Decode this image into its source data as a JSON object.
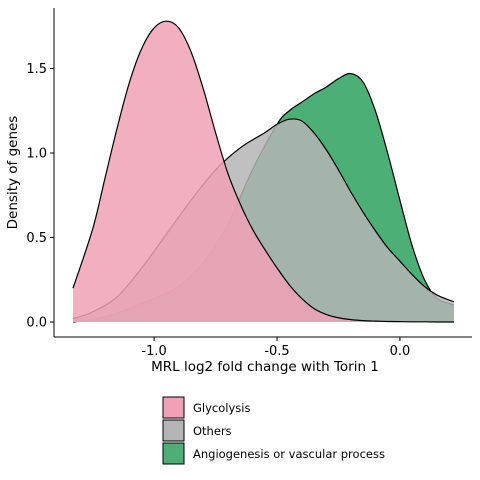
{
  "chart_data": {
    "type": "area",
    "xlabel": "MRL log2 fold change with Torin 1",
    "ylabel": "Density of genes",
    "xlim": [
      -1.33,
      0.22
    ],
    "ylim": [
      0,
      1.85
    ],
    "x_ticks": [
      -1.0,
      -0.5,
      0.0
    ],
    "x_tick_labels": [
      "-1.0",
      "-0.5",
      "0.0"
    ],
    "y_ticks": [
      0.0,
      0.5,
      1.0,
      1.5
    ],
    "y_tick_labels": [
      "0.0",
      "0.5",
      "1.0",
      "1.5"
    ],
    "grid": false,
    "legend_position": "bottom",
    "series": [
      {
        "name": "Angiogenesis or vascular process",
        "color": "#4caf76",
        "opacity": 1.0,
        "x": [
          -1.33,
          -1.2,
          -1.1,
          -1.0,
          -0.9,
          -0.8,
          -0.7,
          -0.6,
          -0.5,
          -0.45,
          -0.4,
          -0.35,
          -0.3,
          -0.25,
          -0.2,
          -0.15,
          -0.1,
          -0.05,
          0.0,
          0.05,
          0.1,
          0.15,
          0.2,
          0.22
        ],
        "y": [
          0.0,
          0.03,
          0.08,
          0.14,
          0.21,
          0.35,
          0.58,
          0.9,
          1.17,
          1.25,
          1.3,
          1.35,
          1.39,
          1.44,
          1.47,
          1.42,
          1.25,
          1.0,
          0.72,
          0.45,
          0.25,
          0.14,
          0.11,
          0.1
        ]
      },
      {
        "name": "Others",
        "color": "#b5b5b5",
        "opacity": 0.85,
        "x": [
          -1.33,
          -1.25,
          -1.15,
          -1.05,
          -0.95,
          -0.85,
          -0.75,
          -0.65,
          -0.55,
          -0.5,
          -0.45,
          -0.4,
          -0.35,
          -0.3,
          -0.25,
          -0.2,
          -0.15,
          -0.1,
          -0.05,
          0.0,
          0.05,
          0.1,
          0.15,
          0.2,
          0.22
        ],
        "y": [
          0.02,
          0.06,
          0.15,
          0.32,
          0.52,
          0.72,
          0.9,
          1.03,
          1.12,
          1.17,
          1.2,
          1.19,
          1.12,
          1.02,
          0.9,
          0.77,
          0.65,
          0.54,
          0.44,
          0.36,
          0.28,
          0.21,
          0.16,
          0.13,
          0.12
        ]
      },
      {
        "name": "Glycolysis",
        "color": "#f0a1b5",
        "opacity": 0.85,
        "x": [
          -1.33,
          -1.25,
          -1.2,
          -1.15,
          -1.1,
          -1.05,
          -1.0,
          -0.95,
          -0.9,
          -0.85,
          -0.8,
          -0.75,
          -0.7,
          -0.65,
          -0.6,
          -0.55,
          -0.5,
          -0.45,
          -0.4,
          -0.35,
          -0.3,
          -0.25,
          -0.2,
          -0.15,
          -0.1,
          -0.05,
          0.0,
          0.05,
          0.1,
          0.15,
          0.2,
          0.22
        ],
        "y": [
          0.2,
          0.55,
          0.85,
          1.15,
          1.42,
          1.62,
          1.74,
          1.78,
          1.74,
          1.6,
          1.38,
          1.12,
          0.88,
          0.7,
          0.55,
          0.43,
          0.32,
          0.22,
          0.14,
          0.08,
          0.045,
          0.025,
          0.014,
          0.008,
          0.005,
          0.003,
          0.002,
          0.001,
          0.001,
          0.0,
          0.0,
          0.0
        ]
      }
    ],
    "legend": [
      {
        "label": "Glycolysis",
        "color": "#f0a1b5"
      },
      {
        "label": "Others",
        "color": "#b5b5b5"
      },
      {
        "label": "Angiogenesis or vascular process",
        "color": "#4caf76"
      }
    ]
  }
}
